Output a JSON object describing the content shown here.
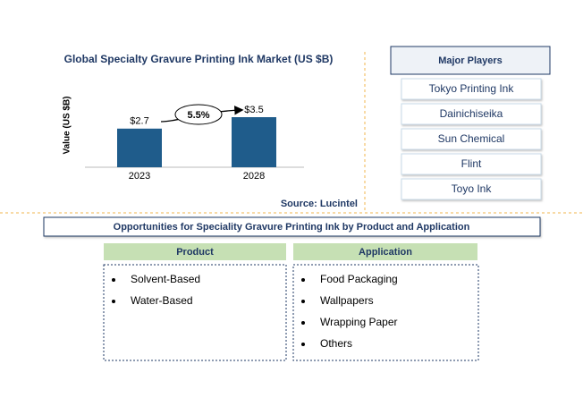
{
  "chart_data": {
    "type": "bar",
    "title": "Global Specialty Gravure Printing Ink Market (US $B)",
    "y_label": "Value (US $B)",
    "categories": [
      "2023",
      "2028"
    ],
    "values": [
      2.7,
      3.5
    ],
    "value_labels": [
      "$2.7",
      "$3.5"
    ],
    "color": "#1f5c8b",
    "annotation": "5.5%",
    "source": "Source: Lucintel"
  },
  "major_players": {
    "title": "Major Players",
    "items": [
      "Tokyo Printing Ink",
      "Dainichiseika",
      "Sun Chemical",
      "Flint",
      "Toyo Ink"
    ]
  },
  "opportunities": {
    "title": "Opportunities for Speciality Gravure Printing Ink by Product and Application",
    "product": {
      "title": "Product",
      "items": [
        "Solvent-Based",
        "Water-Based"
      ]
    },
    "application": {
      "title": "Application",
      "items": [
        "Food Packaging",
        "Wallpapers",
        "Wrapping Paper",
        "Others"
      ]
    }
  }
}
